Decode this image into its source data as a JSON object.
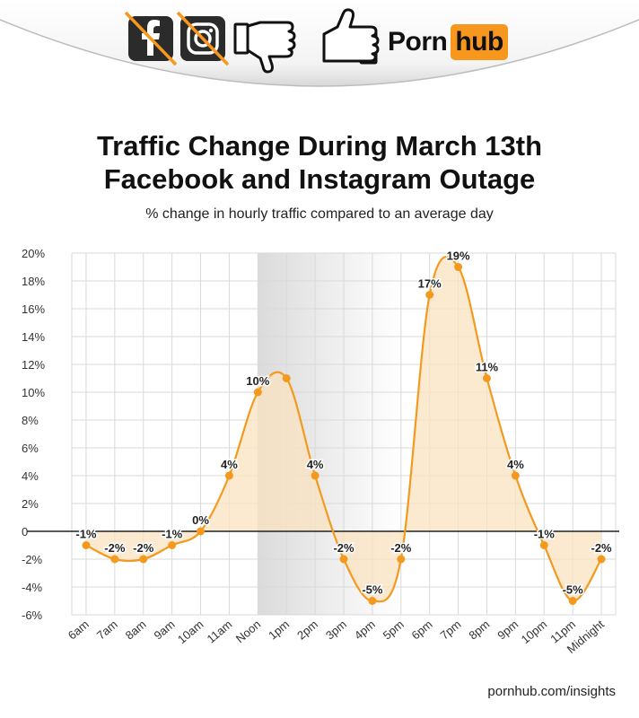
{
  "header": {
    "brand_word_left": "Porn",
    "brand_word_right": "hub",
    "icons": [
      "facebook-crossed-icon",
      "instagram-crossed-icon",
      "thumbs-down-icon",
      "thumbs-up-icon"
    ],
    "colors": {
      "brand_orange": "#f7971d",
      "icon_dark": "#2b2b2b",
      "strike": "#f7971d"
    }
  },
  "title_line1": "Traffic Change During March 13th",
  "title_line2": "Facebook and Instagram Outage",
  "subtitle": "% change in hourly traffic compared to an average day",
  "source": "pornhub.com/insights",
  "chart_data": {
    "type": "area",
    "categories": [
      "6am",
      "7am",
      "8am",
      "9am",
      "10am",
      "11am",
      "Noon",
      "1pm",
      "2pm",
      "3pm",
      "4pm",
      "5pm",
      "6pm",
      "7pm",
      "8pm",
      "9pm",
      "10pm",
      "11pm",
      "Midnight"
    ],
    "values": [
      -1,
      -2,
      -2,
      -1,
      0,
      4,
      10,
      11,
      4,
      -2,
      -5,
      -2,
      17,
      19,
      11,
      4,
      -1,
      -5,
      -2
    ],
    "point_labels": [
      "-1%",
      "-2%",
      "-2%",
      "-1%",
      "0%",
      "4%",
      "10%",
      "",
      "4%",
      "-2%",
      "-5%",
      "-2%",
      "17%",
      "19%",
      "11%",
      "4%",
      "-1%",
      "-5%",
      "-2%"
    ],
    "y_ticks": [
      20,
      18,
      16,
      14,
      12,
      10,
      8,
      6,
      4,
      2,
      0,
      -2,
      -4,
      -6
    ],
    "y_tick_labels": [
      "20%",
      "18%",
      "16%",
      "14%",
      "12%",
      "10%",
      "8%",
      "6%",
      "4%",
      "2%",
      "0",
      "-2%",
      "-4%",
      "-6%"
    ],
    "ylim": [
      -6,
      20
    ],
    "outage_window": [
      "Noon",
      "5pm"
    ],
    "grid": true,
    "colors": {
      "line": "#f39a1e",
      "fill": "#fbe3c0",
      "marker": "#f39a1e",
      "outage_shade": "#bdbdbd",
      "grid": "#d9d9d9",
      "zero_line": "#222222"
    }
  }
}
